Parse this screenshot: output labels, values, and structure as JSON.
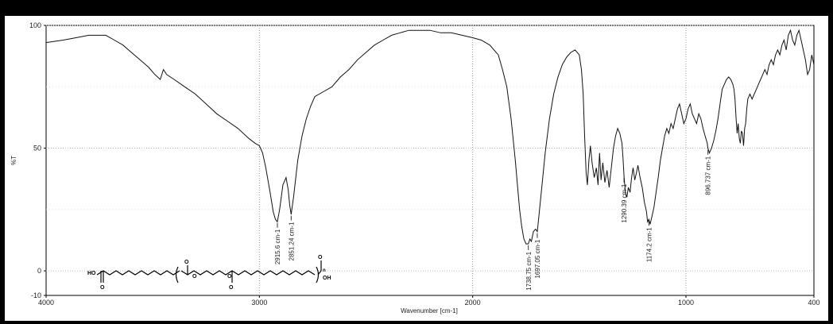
{
  "chart_data": {
    "type": "line",
    "xlabel": "Wavenumber [cm-1]",
    "ylabel": "%T",
    "xlim": [
      4000,
      400
    ],
    "x_reversed": true,
    "ylim": [
      -10,
      100
    ],
    "x_ticks": [
      4000,
      3000,
      2000,
      1000,
      400
    ],
    "y_ticks": [
      100,
      50,
      0,
      -10
    ],
    "grid": true,
    "series": [
      {
        "x": [
          4000,
          3920,
          3860,
          3800,
          3760,
          3720,
          3680,
          3640,
          3600,
          3560,
          3520,
          3490,
          3465,
          3450,
          3435,
          3400,
          3350,
          3300,
          3250,
          3200,
          3150,
          3100,
          3050,
          3020,
          3000,
          2985,
          2970,
          2950,
          2935,
          2925,
          2916,
          2905,
          2890,
          2875,
          2865,
          2858,
          2851,
          2840,
          2820,
          2800,
          2780,
          2760,
          2740,
          2700,
          2660,
          2620,
          2580,
          2540,
          2500,
          2460,
          2420,
          2380,
          2340,
          2300,
          2250,
          2200,
          2150,
          2100,
          2050,
          2000,
          1960,
          1920,
          1880,
          1860,
          1840,
          1820,
          1800,
          1790,
          1780,
          1770,
          1760,
          1750,
          1745,
          1739,
          1732,
          1725,
          1715,
          1705,
          1697,
          1690,
          1675,
          1660,
          1640,
          1620,
          1600,
          1580,
          1560,
          1540,
          1520,
          1500,
          1490,
          1482,
          1475,
          1468,
          1462,
          1455,
          1448,
          1440,
          1430,
          1420,
          1412,
          1405,
          1398,
          1390,
          1380,
          1370,
          1360,
          1350,
          1340,
          1330,
          1320,
          1310,
          1300,
          1295,
          1290,
          1284,
          1277,
          1270,
          1262,
          1255,
          1248,
          1240,
          1232,
          1225,
          1215,
          1205,
          1195,
          1185,
          1180,
          1174,
          1168,
          1160,
          1150,
          1140,
          1130,
          1120,
          1110,
          1100,
          1090,
          1080,
          1070,
          1060,
          1050,
          1040,
          1030,
          1020,
          1010,
          1000,
          990,
          980,
          970,
          960,
          950,
          940,
          930,
          920,
          910,
          900,
          897,
          890,
          880,
          870,
          860,
          850,
          840,
          830,
          820,
          810,
          800,
          790,
          780,
          775,
          770,
          765,
          760,
          755,
          750,
          745,
          740,
          735,
          730,
          725,
          720,
          715,
          710,
          700,
          690,
          680,
          670,
          660,
          650,
          640,
          630,
          620,
          610,
          600,
          590,
          580,
          570,
          560,
          550,
          540,
          530,
          520,
          510,
          500,
          490,
          480,
          470,
          460,
          450,
          440,
          430,
          420,
          410,
          400
        ],
        "y": [
          93,
          94,
          95,
          96,
          96,
          96,
          94,
          92,
          89,
          86,
          83,
          80,
          78,
          82,
          80,
          78,
          75,
          72,
          68,
          64,
          61,
          58,
          54,
          52,
          51,
          48,
          42,
          32,
          24,
          21,
          20,
          25,
          35,
          38,
          33,
          27,
          23,
          30,
          45,
          55,
          62,
          67,
          71,
          73,
          75,
          79,
          82,
          86,
          89,
          92,
          94,
          96,
          97,
          98,
          98,
          98,
          97,
          97,
          96,
          95,
          94,
          92,
          88,
          82,
          75,
          62,
          45,
          35,
          25,
          18,
          13,
          11,
          11,
          11,
          13,
          12,
          16,
          17,
          16,
          22,
          35,
          48,
          62,
          72,
          79,
          84,
          87,
          89,
          90,
          88,
          82,
          72,
          55,
          40,
          35,
          45,
          51,
          44,
          38,
          42,
          35,
          48,
          37,
          44,
          36,
          41,
          34,
          42,
          50,
          55,
          58,
          56,
          52,
          46,
          38,
          32,
          30,
          34,
          32,
          38,
          42,
          37,
          40,
          43,
          38,
          34,
          28,
          24,
          20,
          21,
          19,
          22,
          26,
          32,
          38,
          45,
          50,
          55,
          58,
          56,
          60,
          58,
          62,
          66,
          68,
          64,
          60,
          62,
          66,
          68,
          64,
          62,
          60,
          64,
          62,
          58,
          55,
          52,
          50,
          48,
          50,
          53,
          57,
          62,
          68,
          74,
          76,
          78,
          79,
          78,
          76,
          74,
          70,
          62,
          56,
          60,
          54,
          52,
          57,
          56,
          51,
          58,
          60,
          66,
          70,
          72,
          70,
          72,
          74,
          76,
          78,
          80,
          82,
          80,
          84,
          86,
          84,
          88,
          90,
          88,
          92,
          94,
          90,
          96,
          98,
          94,
          92,
          96,
          98,
          94,
          90,
          86,
          80,
          82,
          88,
          84
        ]
      }
    ],
    "peak_labels": [
      "2915.6 cm-1",
      "2851.24 cm-1",
      "1738.75 cm-1",
      "1697.05 cm-1",
      "1290.39 cm-1",
      "1174.2 cm-1",
      "896.737 cm-1"
    ],
    "peak_positions": [
      2915.6,
      2851.24,
      1738.75,
      1697.05,
      1290.39,
      1174.2,
      896.737
    ],
    "structure_text": {
      "left_group": "HO",
      "oxygen": "O",
      "subscript": "n",
      "right_group": "OH"
    }
  }
}
